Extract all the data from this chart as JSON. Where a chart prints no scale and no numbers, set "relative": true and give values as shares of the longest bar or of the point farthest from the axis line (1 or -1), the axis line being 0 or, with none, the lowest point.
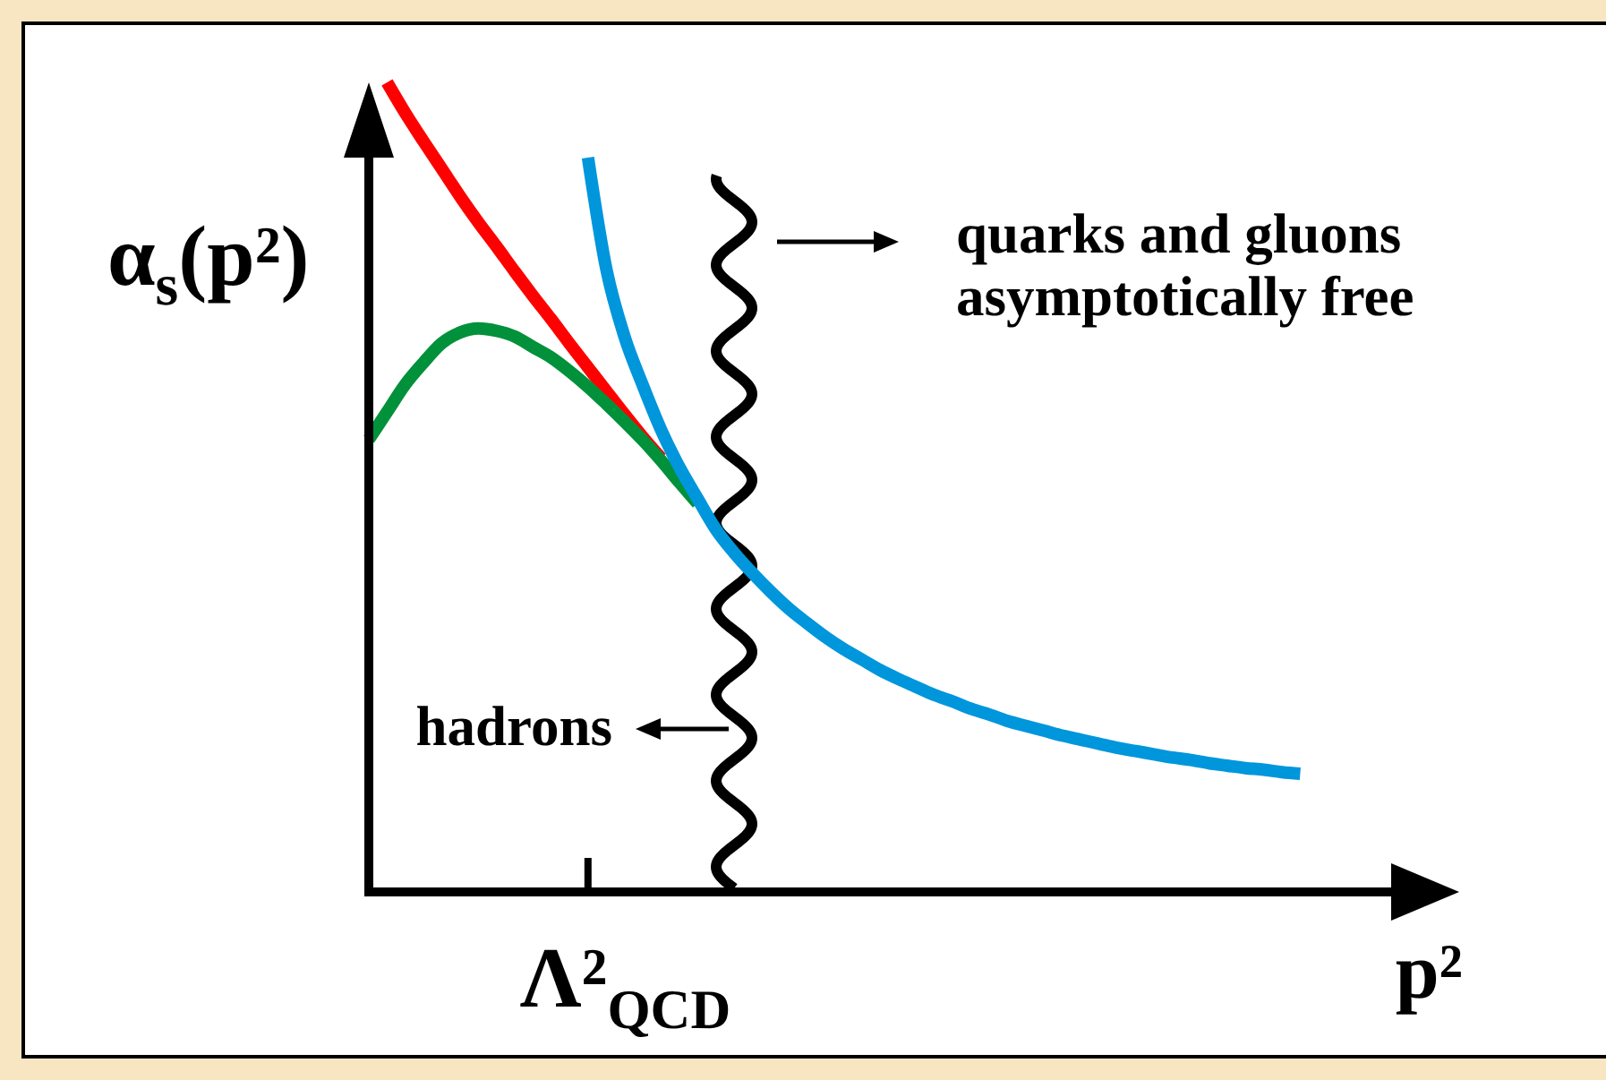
{
  "chart_data": {
    "type": "line",
    "relative": true,
    "xlabel": "p²",
    "ylabel": "α$_{s}$(p²)",
    "categories": [
      null,
      null,
      null,
      null,
      null,
      null,
      null,
      null,
      null,
      null,
      null,
      null,
      null,
      null,
      null,
      null,
      null,
      null,
      null,
      null,
      null,
      null,
      null,
      null,
      null,
      null,
      null,
      null,
      null,
      null,
      null,
      null,
      null,
      null,
      null,
      null,
      null,
      null,
      null,
      null,
      null,
      null,
      null,
      null,
      null,
      null,
      null,
      null,
      null,
      null,
      null,
      null
    ],
    "series": [
      {
        "color": "#ff0000",
        "values": [
          null,
          1,
          0.962,
          0.927,
          0.893,
          0.859,
          0.827,
          0.797,
          0.766,
          0.736,
          0.707,
          0.677,
          0.648,
          0.619,
          0.59,
          0.562,
          0.536,
          null,
          null,
          null,
          null,
          null,
          null,
          null,
          null,
          null,
          null,
          null,
          null,
          null,
          null,
          null,
          null,
          null,
          null,
          null,
          null,
          null,
          null,
          null,
          null,
          null,
          null,
          null,
          null,
          null,
          null,
          null,
          null,
          null,
          null,
          null
        ]
      },
      {
        "color": "#00913a",
        "values": [
          0.559,
          0.593,
          0.627,
          0.654,
          0.678,
          0.691,
          0.696,
          0.693,
          0.686,
          0.673,
          0.66,
          0.643,
          0.624,
          0.603,
          0.581,
          0.558,
          0.533,
          0.506,
          0.48,
          null,
          null,
          null,
          null,
          null,
          null,
          null,
          null,
          null,
          null,
          null,
          null,
          null,
          null,
          null,
          null,
          null,
          null,
          null,
          null,
          null,
          null,
          null,
          null,
          null,
          null,
          null,
          null,
          null,
          null,
          null,
          null,
          null
        ]
      },
      {
        "color": "#0096dc",
        "values": [
          null,
          null,
          null,
          null,
          null,
          null,
          null,
          null,
          null,
          null,
          null,
          null,
          0.907,
          0.77,
          0.686,
          0.626,
          0.571,
          0.525,
          0.486,
          0.448,
          0.419,
          0.394,
          0.371,
          0.35,
          0.332,
          0.315,
          0.3,
          0.287,
          0.274,
          0.263,
          0.253,
          0.243,
          0.235,
          0.226,
          0.219,
          0.211,
          0.205,
          0.199,
          0.193,
          0.188,
          0.183,
          0.178,
          0.174,
          0.17,
          0.166,
          0.163,
          0.159,
          0.156,
          0.153,
          0.151,
          0.148,
          0.146
        ]
      }
    ],
    "annotations": [
      "quarks and gluons\nasymptotically free",
      "hadrons",
      "Λ²$_{QCD}$"
    ]
  }
}
